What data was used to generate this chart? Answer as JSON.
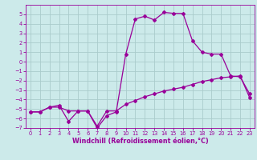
{
  "title": "",
  "xlabel": "Windchill (Refroidissement éolien,°C)",
  "background_color": "#cceaea",
  "grid_color": "#aacccc",
  "line_color": "#990099",
  "x": [
    0,
    1,
    2,
    3,
    4,
    5,
    6,
    7,
    8,
    9,
    10,
    11,
    12,
    13,
    14,
    15,
    16,
    17,
    18,
    19,
    20,
    21,
    22,
    23
  ],
  "line1": [
    -5.3,
    -5.3,
    -4.8,
    -4.8,
    -5.2,
    -5.2,
    -5.2,
    -6.8,
    -5.2,
    -5.2,
    -4.5,
    -4.1,
    -3.7,
    -3.4,
    -3.1,
    -2.9,
    -2.7,
    -2.4,
    -2.1,
    -1.9,
    -1.7,
    -1.6,
    -1.5,
    -3.8
  ],
  "line2": [
    -5.3,
    -5.3,
    -4.8,
    -4.6,
    -6.3,
    -5.2,
    -5.2,
    -7.0,
    -5.7,
    -5.3,
    0.8,
    4.5,
    4.8,
    4.4,
    5.2,
    5.1,
    5.1,
    2.2,
    1.0,
    0.8,
    0.8,
    -1.5,
    -1.6,
    -3.4
  ],
  "ylim": [
    -7,
    6
  ],
  "xlim": [
    -0.5,
    23.5
  ],
  "yticks": [
    -7,
    -6,
    -5,
    -4,
    -3,
    -2,
    -1,
    0,
    1,
    2,
    3,
    4,
    5
  ],
  "xticks": [
    0,
    1,
    2,
    3,
    4,
    5,
    6,
    7,
    8,
    9,
    10,
    11,
    12,
    13,
    14,
    15,
    16,
    17,
    18,
    19,
    20,
    21,
    22,
    23
  ],
  "marker": "D",
  "marker_size": 2.0,
  "line_width": 0.9,
  "tick_fontsize": 4.8,
  "label_fontsize": 5.8
}
